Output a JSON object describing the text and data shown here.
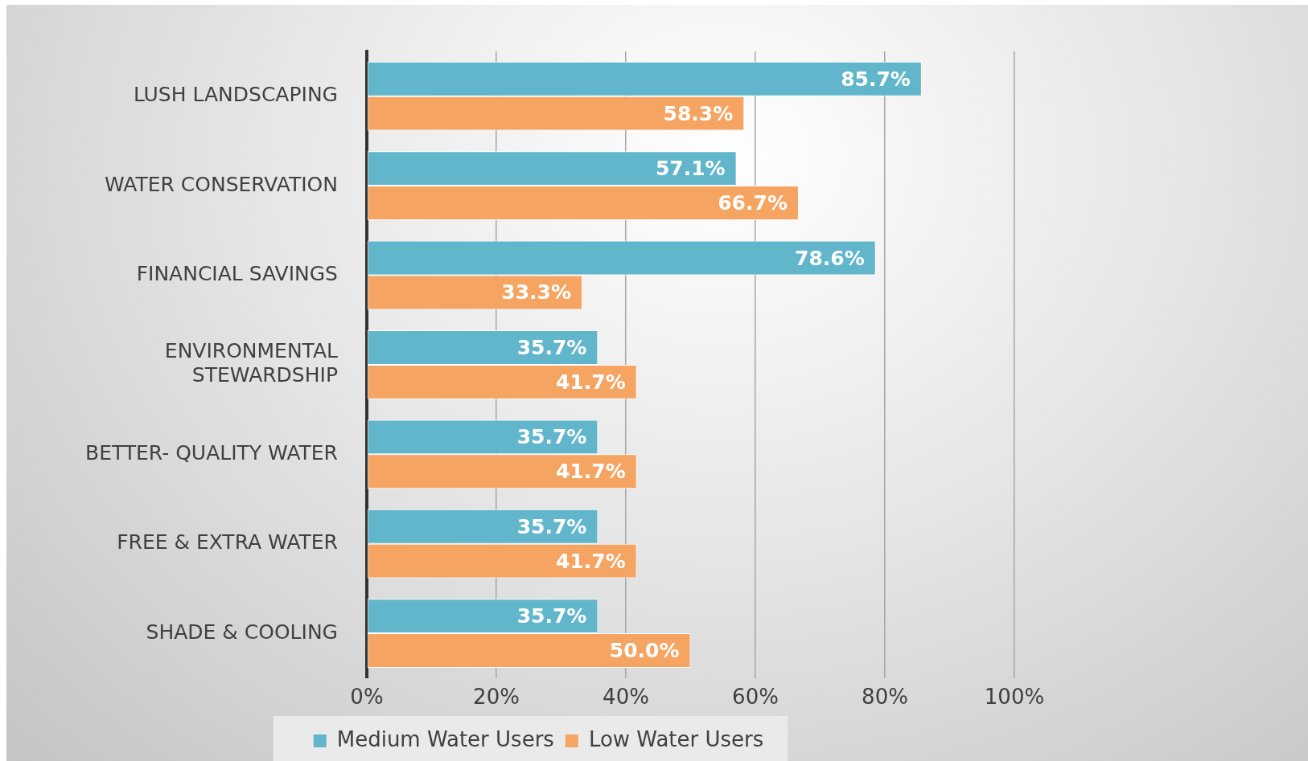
{
  "chart_data": {
    "type": "bar",
    "orientation": "horizontal",
    "categories": [
      "LUSH LANDSCAPING",
      "WATER CONSERVATION",
      "FINANCIAL SAVINGS",
      "ENVIRONMENTAL STEWARDSHIP",
      "BETTER- QUALITY WATER",
      "FREE & EXTRA WATER",
      "SHADE & COOLING"
    ],
    "series": [
      {
        "name": "Medium Water Users",
        "color": "#62b6cc",
        "values": [
          85.7,
          57.1,
          78.6,
          35.7,
          35.7,
          35.7,
          35.7
        ],
        "value_labels": [
          "85.7%",
          "57.1%",
          "78.6%",
          "35.7%",
          "35.7%",
          "35.7%",
          "35.7%"
        ]
      },
      {
        "name": "Low Water Users",
        "color": "#f5a462",
        "values": [
          58.3,
          66.7,
          33.3,
          41.7,
          41.7,
          41.7,
          50.0
        ],
        "value_labels": [
          "58.3%",
          "66.7%",
          "33.3%",
          "41.7%",
          "41.7%",
          "41.7%",
          "50.0%"
        ]
      }
    ],
    "xlim": [
      0,
      100
    ],
    "xticks": [
      {
        "value": 0,
        "label": "0%"
      },
      {
        "value": 20,
        "label": "20%"
      },
      {
        "value": 40,
        "label": "40%"
      },
      {
        "value": 60,
        "label": "60%"
      },
      {
        "value": 80,
        "label": "80%"
      },
      {
        "value": 100,
        "label": "100%"
      }
    ],
    "grid": "x",
    "legend": "bottom"
  }
}
